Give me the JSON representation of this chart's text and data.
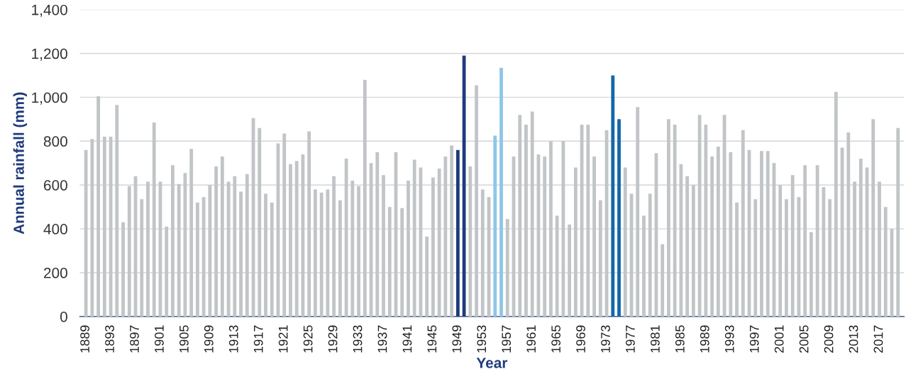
{
  "chart_data": {
    "type": "bar",
    "xlabel": "Year",
    "ylabel": "Annual rainfall (mm)",
    "categories": [
      "1889",
      null,
      null,
      null,
      "1893",
      null,
      null,
      null,
      "1897",
      null,
      null,
      null,
      "1901",
      null,
      null,
      null,
      "1905",
      null,
      null,
      null,
      "1909",
      null,
      null,
      null,
      "1913",
      null,
      null,
      null,
      "1917",
      null,
      null,
      null,
      "1921",
      null,
      null,
      null,
      "1925",
      null,
      null,
      null,
      "1929",
      null,
      null,
      null,
      "1933",
      null,
      null,
      null,
      "1937",
      null,
      null,
      null,
      "1941",
      null,
      null,
      null,
      "1945",
      null,
      null,
      null,
      "1949",
      null,
      null,
      null,
      "1953",
      null,
      null,
      null,
      "1957",
      null,
      null,
      null,
      "1961",
      null,
      null,
      null,
      "1965",
      null,
      null,
      null,
      "1969",
      null,
      null,
      null,
      "1973",
      null,
      null,
      null,
      "1977",
      null,
      null,
      null,
      "1981",
      null,
      null,
      null,
      "1985",
      null,
      null,
      null,
      "1989",
      null,
      null,
      null,
      "1993",
      null,
      null,
      null,
      "1997",
      null,
      null,
      null,
      "2001",
      null,
      null,
      null,
      "2005",
      null,
      null,
      null,
      "2009",
      null,
      null,
      null,
      "2013",
      null,
      null,
      null,
      "2017",
      null,
      null,
      null
    ],
    "values": [
      760,
      810,
      1005,
      820,
      820,
      965,
      430,
      595,
      640,
      535,
      615,
      885,
      615,
      410,
      690,
      605,
      655,
      765,
      520,
      545,
      600,
      685,
      730,
      615,
      640,
      570,
      650,
      905,
      860,
      560,
      520,
      790,
      835,
      695,
      710,
      740,
      845,
      580,
      565,
      580,
      640,
      530,
      720,
      620,
      595,
      1080,
      700,
      750,
      645,
      500,
      750,
      495,
      620,
      715,
      680,
      365,
      635,
      675,
      730,
      780,
      760,
      1190,
      685,
      1055,
      580,
      545,
      825,
      1135,
      445,
      730,
      920,
      875,
      935,
      740,
      730,
      800,
      460,
      800,
      420,
      680,
      875,
      875,
      730,
      530,
      850,
      1100,
      900,
      680,
      560,
      955,
      460,
      560,
      745,
      330,
      900,
      875,
      695,
      640,
      600,
      920,
      875,
      730,
      775,
      920,
      750,
      520,
      850,
      760,
      535,
      755,
      755,
      700,
      600,
      535,
      645,
      545,
      690,
      385,
      690,
      590,
      535,
      1025,
      770,
      840,
      615,
      720,
      680,
      900,
      615,
      500,
      400,
      860
    ],
    "colors": [
      "#c1c5c7",
      "#c1c5c7",
      "#c1c5c7",
      "#c1c5c7",
      "#c1c5c7",
      "#c1c5c7",
      "#c1c5c7",
      "#c1c5c7",
      "#c1c5c7",
      "#c1c5c7",
      "#c1c5c7",
      "#c1c5c7",
      "#c1c5c7",
      "#c1c5c7",
      "#c1c5c7",
      "#c1c5c7",
      "#c1c5c7",
      "#c1c5c7",
      "#c1c5c7",
      "#c1c5c7",
      "#c1c5c7",
      "#c1c5c7",
      "#c1c5c7",
      "#c1c5c7",
      "#c1c5c7",
      "#c1c5c7",
      "#c1c5c7",
      "#c1c5c7",
      "#c1c5c7",
      "#c1c5c7",
      "#c1c5c7",
      "#c1c5c7",
      "#c1c5c7",
      "#c1c5c7",
      "#c1c5c7",
      "#c1c5c7",
      "#c1c5c7",
      "#c1c5c7",
      "#c1c5c7",
      "#c1c5c7",
      "#c1c5c7",
      "#c1c5c7",
      "#c1c5c7",
      "#c1c5c7",
      "#c1c5c7",
      "#c1c5c7",
      "#c1c5c7",
      "#c1c5c7",
      "#c1c5c7",
      "#c1c5c7",
      "#c1c5c7",
      "#c1c5c7",
      "#c1c5c7",
      "#c1c5c7",
      "#c1c5c7",
      "#c1c5c7",
      "#c1c5c7",
      "#c1c5c7",
      "#c1c5c7",
      "#c1c5c7",
      "#1f3b7b",
      "#1f3b7b",
      "#c1c5c7",
      "#c1c5c7",
      "#c1c5c7",
      "#c1c5c7",
      "#8ec6e8",
      "#8ec6e8",
      "#c1c5c7",
      "#c1c5c7",
      "#c1c5c7",
      "#c1c5c7",
      "#c1c5c7",
      "#c1c5c7",
      "#c1c5c7",
      "#c1c5c7",
      "#c1c5c7",
      "#c1c5c7",
      "#c1c5c7",
      "#c1c5c7",
      "#c1c5c7",
      "#c1c5c7",
      "#c1c5c7",
      "#c1c5c7",
      "#c1c5c7",
      "#1466ab",
      "#1466ab",
      "#c1c5c7",
      "#c1c5c7",
      "#c1c5c7",
      "#c1c5c7",
      "#c1c5c7",
      "#c1c5c7",
      "#c1c5c7",
      "#c1c5c7",
      "#c1c5c7",
      "#c1c5c7",
      "#c1c5c7",
      "#c1c5c7",
      "#c1c5c7",
      "#c1c5c7",
      "#c1c5c7",
      "#c1c5c7",
      "#c1c5c7",
      "#c1c5c7",
      "#c1c5c7",
      "#c1c5c7",
      "#c1c5c7",
      "#c1c5c7",
      "#c1c5c7",
      "#c1c5c7",
      "#c1c5c7",
      "#c1c5c7",
      "#c1c5c7",
      "#c1c5c7",
      "#c1c5c7",
      "#c1c5c7",
      "#c1c5c7",
      "#c1c5c7",
      "#c1c5c7",
      "#c1c5c7",
      "#c1c5c7",
      "#c1c5c7",
      "#c1c5c7",
      "#c1c5c7",
      "#c1c5c7",
      "#c1c5c7",
      "#c1c5c7",
      "#c1c5c7",
      "#c1c5c7",
      "#c1c5c7",
      "#c1c5c7"
    ],
    "ylim": [
      0,
      1400
    ],
    "yticks": [
      0,
      {
        "value": 200,
        "label": "200"
      },
      {
        "value": 400,
        "label": "400"
      },
      {
        "value": 600,
        "label": "600"
      },
      {
        "value": 800,
        "label": "800"
      },
      {
        "value": 1000,
        "label": "1,000"
      },
      {
        "value": 1200,
        "label": "1,200"
      },
      {
        "value": 1400,
        "label": "1,400"
      }
    ],
    "grid": "y",
    "legend": false
  }
}
